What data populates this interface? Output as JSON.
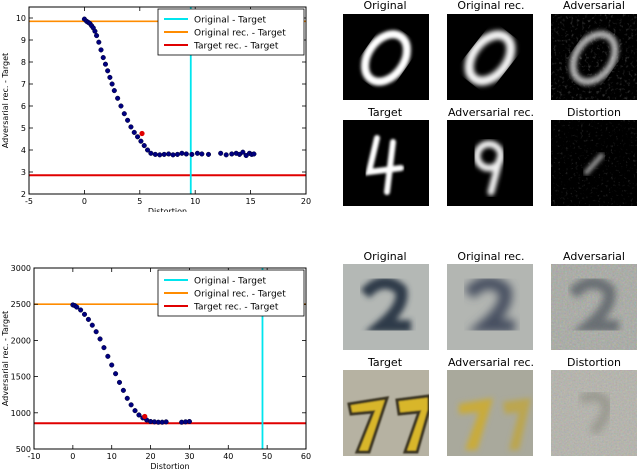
{
  "chart_data": [
    {
      "type": "scatter",
      "title": "",
      "xlabel": "Distortion",
      "ylabel": "Adversarial rec. - Target",
      "xlim": [
        -5,
        20
      ],
      "ylim": [
        2,
        10.5
      ],
      "xticks": [
        "-5",
        "0",
        "5",
        "10",
        "15",
        "20"
      ],
      "yticks": [
        "2",
        "3",
        "4",
        "5",
        "6",
        "7",
        "8",
        "9",
        "10"
      ],
      "legend_position": "top-right",
      "grid": false,
      "legend": [
        {
          "name": "Original - Target",
          "color": "#00e5ee"
        },
        {
          "name": "Original rec. - Target",
          "color": "#ff8c00"
        },
        {
          "name": "Target rec. - Target",
          "color": "#e00000"
        }
      ],
      "reference_lines": {
        "original_target_x": 9.6,
        "original_rec_target_y": 9.85,
        "target_rec_target_y": 2.85
      },
      "series": [
        {
          "color": "#000080",
          "x": [
            0,
            0.2,
            0.35,
            0.5,
            0.65,
            0.8,
            0.95,
            1.1,
            1.3,
            1.5,
            1.7,
            1.9,
            2.1,
            2.3,
            2.5,
            2.7,
            3.0,
            3.3,
            3.6,
            3.9,
            4.2,
            4.5,
            4.8,
            5.1,
            5.4,
            5.7,
            6.0,
            6.4,
            6.8,
            7.2,
            7.6,
            8.0,
            8.4,
            8.8,
            9.2,
            9.7,
            10.2,
            10.6,
            11.2,
            12.3,
            12.8,
            13.3,
            13.7,
            14.0,
            14.3,
            14.6,
            14.9,
            15.1,
            15.3
          ],
          "y": [
            9.95,
            9.85,
            9.8,
            9.75,
            9.65,
            9.55,
            9.4,
            9.2,
            8.9,
            8.55,
            8.2,
            7.9,
            7.6,
            7.3,
            7.0,
            6.7,
            6.35,
            6.0,
            5.65,
            5.35,
            5.05,
            4.8,
            4.6,
            4.4,
            4.2,
            4.0,
            3.85,
            3.8,
            3.78,
            3.8,
            3.82,
            3.78,
            3.8,
            3.85,
            3.82,
            3.8,
            3.85,
            3.82,
            3.8,
            3.85,
            3.78,
            3.82,
            3.85,
            3.8,
            3.9,
            3.75,
            3.85,
            3.8,
            3.82
          ]
        }
      ],
      "highlight": {
        "x": 5.2,
        "y": 4.75,
        "color": "#e00000"
      }
    },
    {
      "type": "scatter",
      "title": "",
      "xlabel": "Distortion",
      "ylabel": "Adversarial rec. - Target",
      "xlim": [
        -10,
        60
      ],
      "ylim": [
        500,
        3000
      ],
      "xticks": [
        "-10",
        "0",
        "10",
        "20",
        "30",
        "40",
        "50",
        "60"
      ],
      "yticks": [
        "500",
        "1000",
        "1500",
        "2000",
        "2500",
        "3000"
      ],
      "legend_position": "top-right",
      "grid": false,
      "legend": [
        {
          "name": "Original - Target",
          "color": "#00e5ee"
        },
        {
          "name": "Original rec. - Target",
          "color": "#ff8c00"
        },
        {
          "name": "Target rec. - Target",
          "color": "#e00000"
        }
      ],
      "reference_lines": {
        "original_target_x": 48.8,
        "original_rec_target_y": 2500,
        "target_rec_target_y": 855
      },
      "series": [
        {
          "color": "#000080",
          "x": [
            0,
            0.5,
            1.0,
            2.0,
            3.0,
            4.0,
            5.0,
            6.0,
            7.0,
            8.0,
            9.0,
            10.0,
            11.0,
            12.0,
            13.0,
            14.0,
            15.0,
            16.0,
            17.0,
            18.0,
            19.0,
            20.0,
            21.0,
            22.0,
            23.0,
            24.0,
            28.0,
            29.0,
            30.0
          ],
          "y": [
            2490,
            2480,
            2460,
            2420,
            2360,
            2290,
            2210,
            2120,
            2020,
            1900,
            1780,
            1660,
            1540,
            1420,
            1310,
            1200,
            1110,
            1030,
            970,
            930,
            900,
            880,
            875,
            870,
            870,
            875,
            870,
            875,
            880
          ]
        }
      ],
      "highlight": {
        "x": 18.5,
        "y": 950,
        "color": "#e00000"
      }
    }
  ],
  "image_grids": [
    {
      "labels": [
        "Original",
        "Original rec.",
        "Adversarial",
        "Target",
        "Adversarial rec.",
        "Distortion"
      ]
    },
    {
      "labels": [
        "Original",
        "Original rec.",
        "Adversarial",
        "Target",
        "Adversarial rec.",
        "Distortion"
      ]
    }
  ]
}
